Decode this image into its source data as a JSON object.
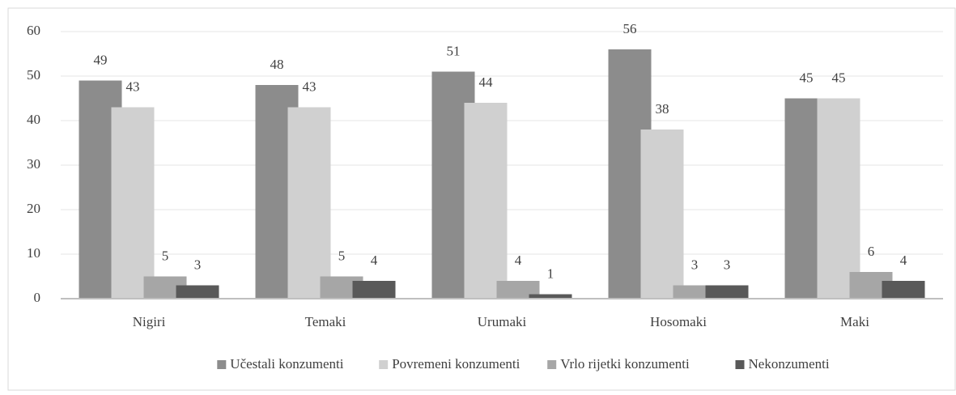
{
  "chart_data": {
    "type": "bar",
    "categories": [
      "Nigiri",
      "Temaki",
      "Urumaki",
      "Hosomaki",
      "Maki"
    ],
    "series": [
      {
        "name": "Učestali konzumenti",
        "color": "#8c8c8c",
        "values": [
          49,
          48,
          51,
          56,
          45
        ]
      },
      {
        "name": "Povremeni konzumenti",
        "color": "#d0d0d0",
        "values": [
          43,
          43,
          44,
          38,
          45
        ]
      },
      {
        "name": "Vrlo rijetki konzumenti",
        "color": "#a6a6a6",
        "values": [
          5,
          5,
          4,
          3,
          6
        ]
      },
      {
        "name": "Nekonzumenti",
        "color": "#595959",
        "values": [
          3,
          4,
          1,
          3,
          4
        ]
      }
    ],
    "ylim": [
      0,
      60
    ],
    "yticks": [
      0,
      10,
      20,
      30,
      40,
      50,
      60
    ],
    "grid": true,
    "legend": "bottom",
    "data_labels": true
  }
}
